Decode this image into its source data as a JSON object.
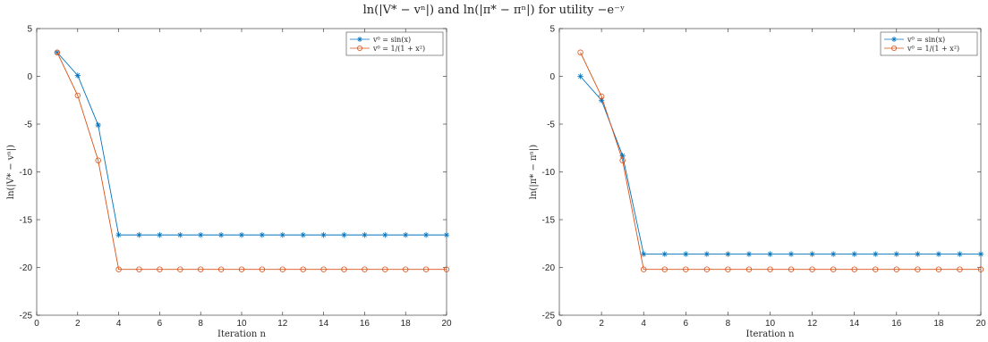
{
  "figure_title": "ln(|V* − vⁿ|) and ln(|π* − πⁿ|) for utility −e⁻ʸ",
  "colors": {
    "series1": "#0072BD",
    "series2": "#D95319",
    "axes": "#262626"
  },
  "chart_data": [
    {
      "type": "line",
      "title": "",
      "xlabel": "Iteration n",
      "ylabel": "ln(|V* − vⁿ|)",
      "xlim": [
        0,
        20
      ],
      "ylim": [
        -25,
        5
      ],
      "xticks": [
        0,
        2,
        4,
        6,
        8,
        10,
        12,
        14,
        16,
        18,
        20
      ],
      "yticks": [
        5,
        0,
        -5,
        -10,
        -15,
        -20,
        -25
      ],
      "grid": false,
      "legend_position": "top-right",
      "x": [
        1,
        2,
        3,
        4,
        5,
        6,
        7,
        8,
        9,
        10,
        11,
        12,
        13,
        14,
        15,
        16,
        17,
        18,
        19,
        20
      ],
      "series": [
        {
          "name": "v⁰ = sin(x)",
          "marker": "asterisk",
          "values": [
            2.5,
            0.1,
            -5.1,
            -16.6,
            -16.6,
            -16.6,
            -16.6,
            -16.6,
            -16.6,
            -16.6,
            -16.6,
            -16.6,
            -16.6,
            -16.6,
            -16.6,
            -16.6,
            -16.6,
            -16.6,
            -16.6,
            -16.6
          ]
        },
        {
          "name": "v⁰ = 1/(1 + x²)",
          "marker": "circle",
          "values": [
            2.5,
            -2.0,
            -8.8,
            -20.2,
            -20.2,
            -20.2,
            -20.2,
            -20.2,
            -20.2,
            -20.2,
            -20.2,
            -20.2,
            -20.2,
            -20.2,
            -20.2,
            -20.2,
            -20.2,
            -20.2,
            -20.2,
            -20.2
          ]
        }
      ]
    },
    {
      "type": "line",
      "title": "",
      "xlabel": "Iteration n",
      "ylabel": "ln(|π* − πⁿ|)",
      "xlim": [
        0,
        20
      ],
      "ylim": [
        -25,
        5
      ],
      "xticks": [
        0,
        2,
        4,
        6,
        8,
        10,
        12,
        14,
        16,
        18,
        20
      ],
      "yticks": [
        5,
        0,
        -5,
        -10,
        -15,
        -20,
        -25
      ],
      "grid": false,
      "legend_position": "top-right",
      "x": [
        1,
        2,
        3,
        4,
        5,
        6,
        7,
        8,
        9,
        10,
        11,
        12,
        13,
        14,
        15,
        16,
        17,
        18,
        19,
        20
      ],
      "series": [
        {
          "name": "v⁰ = sin(x)",
          "marker": "asterisk",
          "values": [
            0.0,
            -2.5,
            -8.3,
            -18.6,
            -18.6,
            -18.6,
            -18.6,
            -18.6,
            -18.6,
            -18.6,
            -18.6,
            -18.6,
            -18.6,
            -18.6,
            -18.6,
            -18.6,
            -18.6,
            -18.6,
            -18.6,
            -18.6
          ]
        },
        {
          "name": "v⁰ = 1/(1 + x²)",
          "marker": "circle",
          "values": [
            2.5,
            -2.1,
            -8.8,
            -20.2,
            -20.2,
            -20.2,
            -20.2,
            -20.2,
            -20.2,
            -20.2,
            -20.2,
            -20.2,
            -20.2,
            -20.2,
            -20.2,
            -20.2,
            -20.2,
            -20.2,
            -20.2,
            -20.2
          ]
        }
      ]
    }
  ]
}
